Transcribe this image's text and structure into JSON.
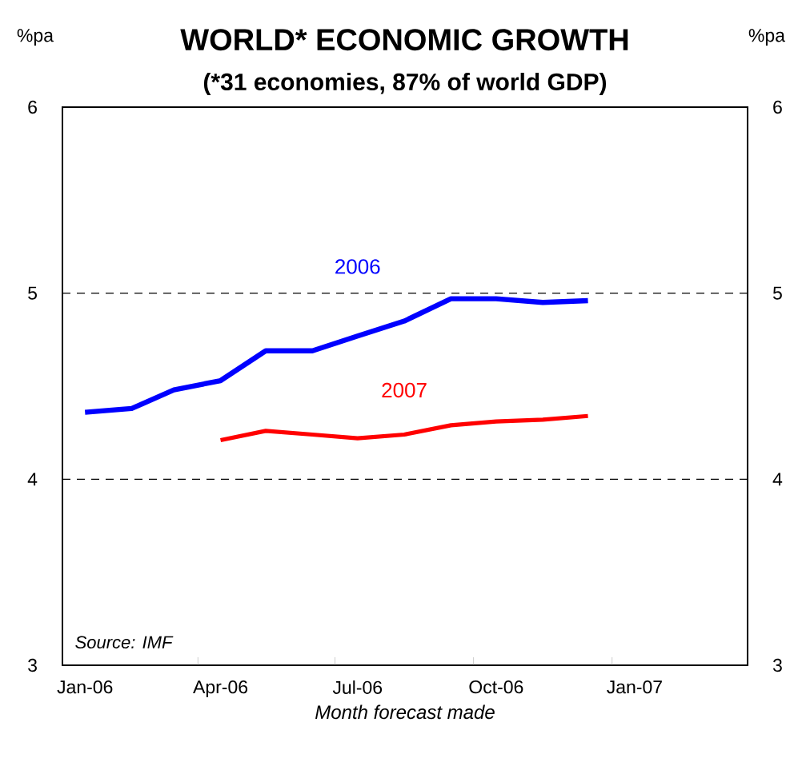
{
  "chart_data": {
    "type": "line",
    "title": "WORLD* ECONOMIC GROWTH",
    "subtitle": "(*31 economies, 87% of world GDP)",
    "xlabel": "Month forecast made",
    "ylabel": "%pa",
    "y2label": "%pa",
    "annotations": [
      "*Source: IMF*"
    ],
    "xlim": [
      "2006-01-01",
      "2007-04-01"
    ],
    "xticks": [
      {
        "value": "2006-01-16",
        "label": "Jan-06"
      },
      {
        "value": "2006-04-16",
        "label": "Apr-06"
      },
      {
        "value": "2006-07-16",
        "label": "Jul-06"
      },
      {
        "value": "2006-10-16",
        "label": "Oct-06"
      },
      {
        "value": "2007-01-16",
        "label": "Jan-07"
      },
      {
        "value": "2006-04-01",
        "label": null
      },
      {
        "value": "2006-07-01",
        "label": null
      },
      {
        "value": "2006-10-01",
        "label": null
      },
      {
        "value": "2007-01-01",
        "label": null
      }
    ],
    "ylim": [
      3,
      6
    ],
    "yticks": [
      3,
      4,
      5,
      6
    ],
    "y2lim": [
      3,
      6
    ],
    "y2ticks": [
      3,
      4,
      5,
      6
    ],
    "grid": "y",
    "series": [
      {
        "name": "2006",
        "color": "#0000ff",
        "x": [
          "2006-01-16",
          "2006-02-16",
          "2006-03-16",
          "2006-04-16",
          "2006-05-16",
          "2006-06-16",
          "2006-07-16",
          "2006-08-16",
          "2006-09-16",
          "2006-10-16",
          "2006-11-16",
          "2006-12-16"
        ],
        "values": [
          4.36,
          4.38,
          4.48,
          4.53,
          4.69,
          4.69,
          4.77,
          4.85,
          4.97,
          4.97,
          4.95,
          4.96
        ]
      },
      {
        "name": "2007",
        "color": "#ff0000",
        "x": [
          "2006-04-16",
          "2006-05-16",
          "2006-06-16",
          "2006-07-16",
          "2006-08-16",
          "2006-09-16",
          "2006-10-16",
          "2006-11-16",
          "2006-12-16"
        ],
        "values": [
          4.21,
          4.26,
          4.24,
          4.22,
          4.24,
          4.29,
          4.31,
          4.32,
          4.34
        ]
      }
    ]
  }
}
